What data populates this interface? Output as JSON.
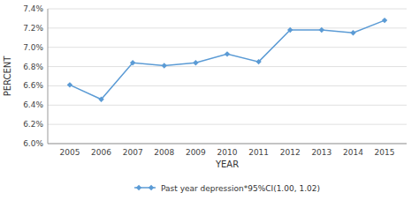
{
  "chart_data": {
    "type": "line",
    "x_label": "YEAR",
    "y_label": "PERCENT",
    "x": [
      2005,
      2006,
      2007,
      2008,
      2009,
      2010,
      2011,
      2012,
      2013,
      2014,
      2015
    ],
    "series": [
      {
        "name": "Past year depression*95%CI(1.00, 1.02)",
        "color": "#5b9bd5",
        "marker": "diamond",
        "values": [
          6.61,
          6.46,
          6.84,
          6.81,
          6.84,
          6.93,
          6.85,
          7.18,
          7.18,
          7.15,
          7.28
        ]
      }
    ],
    "xlim": [
      2004.3,
      2015.7
    ],
    "xticks": [
      2005,
      2006,
      2007,
      2008,
      2009,
      2010,
      2011,
      2012,
      2013,
      2014,
      2015
    ],
    "ylim": [
      6.0,
      7.4
    ],
    "yticks": [
      {
        "value": 6.0,
        "label": "6.0%"
      },
      {
        "value": 6.2,
        "label": "6.2%"
      },
      {
        "value": 6.4,
        "label": "6.4%"
      },
      {
        "value": 6.6,
        "label": "6.6%"
      },
      {
        "value": 6.8,
        "label": "6.8%"
      },
      {
        "value": 7.0,
        "label": "7.0%"
      },
      {
        "value": 7.2,
        "label": "7.2%"
      },
      {
        "value": 7.4,
        "label": "7.4%"
      }
    ],
    "grid": "y",
    "legend": "bottom"
  }
}
